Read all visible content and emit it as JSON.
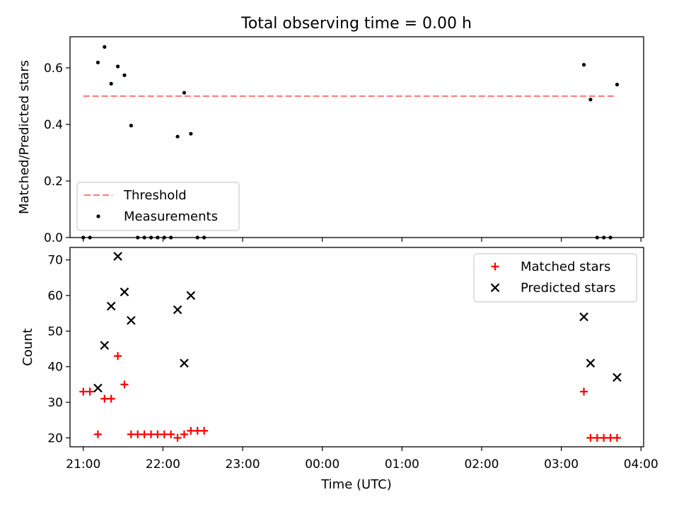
{
  "figure": {
    "title": "Total observing time = 0.00 h",
    "xlabel": "Time (UTC)"
  },
  "chart_data": [
    {
      "type": "scatter",
      "panel": "top",
      "ylabel": "Matched/Predicted stars",
      "xlim": [
        "20:50",
        "04:02"
      ],
      "ylim": [
        0,
        0.71
      ],
      "yticks": [
        0.0,
        0.2,
        0.4,
        0.6
      ],
      "ytick_labels": [
        "0.0",
        "0.2",
        "0.4",
        "0.6"
      ],
      "xticks": [
        "21:00",
        "22:00",
        "23:00",
        "00:00",
        "01:00",
        "02:00",
        "03:00",
        "04:00"
      ],
      "tick_labels_visible": false,
      "legend": {
        "placement": "lower-left",
        "entries": [
          "Threshold",
          "Measurements"
        ]
      },
      "series": [
        {
          "name": "Threshold",
          "kind": "line",
          "style": "dashed",
          "color": "#ff7f7f",
          "points": [
            {
              "x": "21:00",
              "y": 0.5
            },
            {
              "x": "03:40",
              "y": 0.5
            }
          ]
        },
        {
          "name": "Measurements",
          "kind": "scatter",
          "marker": "dot",
          "color": "#000000",
          "points": [
            {
              "x": "21:00",
              "y": 0.0
            },
            {
              "x": "21:05",
              "y": 0.0
            },
            {
              "x": "21:11",
              "y": 0.619
            },
            {
              "x": "21:16",
              "y": 0.674
            },
            {
              "x": "21:21",
              "y": 0.544
            },
            {
              "x": "21:26",
              "y": 0.605
            },
            {
              "x": "21:31",
              "y": 0.574
            },
            {
              "x": "21:36",
              "y": 0.396
            },
            {
              "x": "21:41",
              "y": 0.0
            },
            {
              "x": "21:46",
              "y": 0.0
            },
            {
              "x": "21:51",
              "y": 0.0
            },
            {
              "x": "21:56",
              "y": 0.0
            },
            {
              "x": "22:01",
              "y": 0.0
            },
            {
              "x": "22:06",
              "y": 0.0
            },
            {
              "x": "22:11",
              "y": 0.357
            },
            {
              "x": "22:16",
              "y": 0.512
            },
            {
              "x": "22:21",
              "y": 0.367
            },
            {
              "x": "22:26",
              "y": 0.0
            },
            {
              "x": "22:31",
              "y": 0.0
            },
            {
              "x": "03:17",
              "y": 0.611
            },
            {
              "x": "03:22",
              "y": 0.488
            },
            {
              "x": "03:27",
              "y": 0.0
            },
            {
              "x": "03:32",
              "y": 0.0
            },
            {
              "x": "03:37",
              "y": 0.0
            },
            {
              "x": "03:42",
              "y": 0.541
            }
          ]
        }
      ]
    },
    {
      "type": "scatter",
      "panel": "bottom",
      "ylabel": "Count",
      "xlabel": "Time (UTC)",
      "xlim": [
        "20:50",
        "04:02"
      ],
      "ylim": [
        17.5,
        73.5
      ],
      "yticks": [
        20,
        30,
        40,
        50,
        60,
        70
      ],
      "ytick_labels": [
        "20",
        "30",
        "40",
        "50",
        "60",
        "70"
      ],
      "xticks": [
        "21:00",
        "22:00",
        "23:00",
        "00:00",
        "01:00",
        "02:00",
        "03:00",
        "04:00"
      ],
      "xtick_labels": [
        "21:00",
        "22:00",
        "23:00",
        "00:00",
        "01:00",
        "02:00",
        "03:00",
        "04:00"
      ],
      "legend": {
        "placement": "top-right",
        "entries": [
          "Matched stars",
          "Predicted stars"
        ]
      },
      "series": [
        {
          "name": "Matched stars",
          "marker": "plus",
          "color": "#ff0000",
          "points": [
            {
              "x": "21:00",
              "y": 33
            },
            {
              "x": "21:05",
              "y": 33
            },
            {
              "x": "21:11",
              "y": 21
            },
            {
              "x": "21:16",
              "y": 31
            },
            {
              "x": "21:21",
              "y": 31
            },
            {
              "x": "21:26",
              "y": 43
            },
            {
              "x": "21:31",
              "y": 35
            },
            {
              "x": "21:36",
              "y": 21
            },
            {
              "x": "21:41",
              "y": 21
            },
            {
              "x": "21:46",
              "y": 21
            },
            {
              "x": "21:51",
              "y": 21
            },
            {
              "x": "21:56",
              "y": 21
            },
            {
              "x": "22:01",
              "y": 21
            },
            {
              "x": "22:06",
              "y": 21
            },
            {
              "x": "22:11",
              "y": 20
            },
            {
              "x": "22:16",
              "y": 21
            },
            {
              "x": "22:21",
              "y": 22
            },
            {
              "x": "22:26",
              "y": 22
            },
            {
              "x": "22:31",
              "y": 22
            },
            {
              "x": "03:17",
              "y": 33
            },
            {
              "x": "03:22",
              "y": 20
            },
            {
              "x": "03:27",
              "y": 20
            },
            {
              "x": "03:32",
              "y": 20
            },
            {
              "x": "03:37",
              "y": 20
            },
            {
              "x": "03:42",
              "y": 20
            }
          ]
        },
        {
          "name": "Predicted stars",
          "marker": "x",
          "color": "#000000",
          "points": [
            {
              "x": "21:11",
              "y": 34
            },
            {
              "x": "21:16",
              "y": 46
            },
            {
              "x": "21:21",
              "y": 57
            },
            {
              "x": "21:26",
              "y": 71
            },
            {
              "x": "21:31",
              "y": 61
            },
            {
              "x": "21:36",
              "y": 53
            },
            {
              "x": "22:11",
              "y": 56
            },
            {
              "x": "22:16",
              "y": 41
            },
            {
              "x": "22:21",
              "y": 60
            },
            {
              "x": "03:17",
              "y": 54
            },
            {
              "x": "03:22",
              "y": 41
            },
            {
              "x": "03:42",
              "y": 37
            }
          ]
        }
      ]
    }
  ]
}
